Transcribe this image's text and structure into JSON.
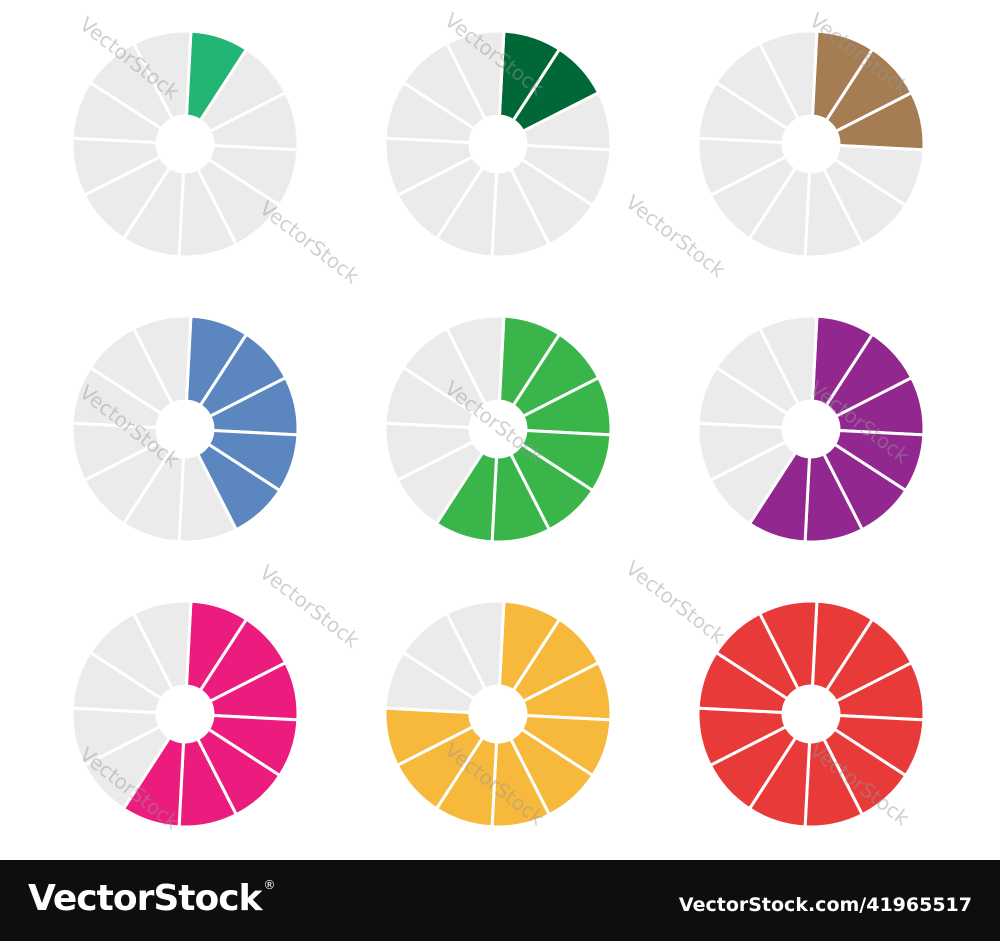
{
  "ring": {
    "segments": 12,
    "base_color": "#ebebeb",
    "separator_color": "#ffffff"
  },
  "indicators": [
    {
      "name": "indicator-1-of-12",
      "filled": 1,
      "color": "#22b573"
    },
    {
      "name": "indicator-2-of-12",
      "filled": 2,
      "color": "#006837"
    },
    {
      "name": "indicator-3-of-12",
      "filled": 3,
      "color": "#a67c52"
    },
    {
      "name": "indicator-5-of-12",
      "filled": 5,
      "color": "#5b86c0"
    },
    {
      "name": "indicator-7-of-12",
      "filled": 7,
      "color": "#39b54a"
    },
    {
      "name": "indicator-7-of-12-purple",
      "filled": 7,
      "color": "#92278f"
    },
    {
      "name": "indicator-7-of-12-pink",
      "filled": 7,
      "color": "#ec1c7e"
    },
    {
      "name": "indicator-9-of-12",
      "filled": 9,
      "color": "#f7b93b"
    },
    {
      "name": "indicator-12-of-12",
      "filled": 12,
      "color": "#e83a39"
    }
  ],
  "watermark": {
    "text": "VectorStock"
  },
  "footer": {
    "brand": "VectorStock",
    "registered": "®",
    "site_id": "VectorStock.com/41965517"
  }
}
